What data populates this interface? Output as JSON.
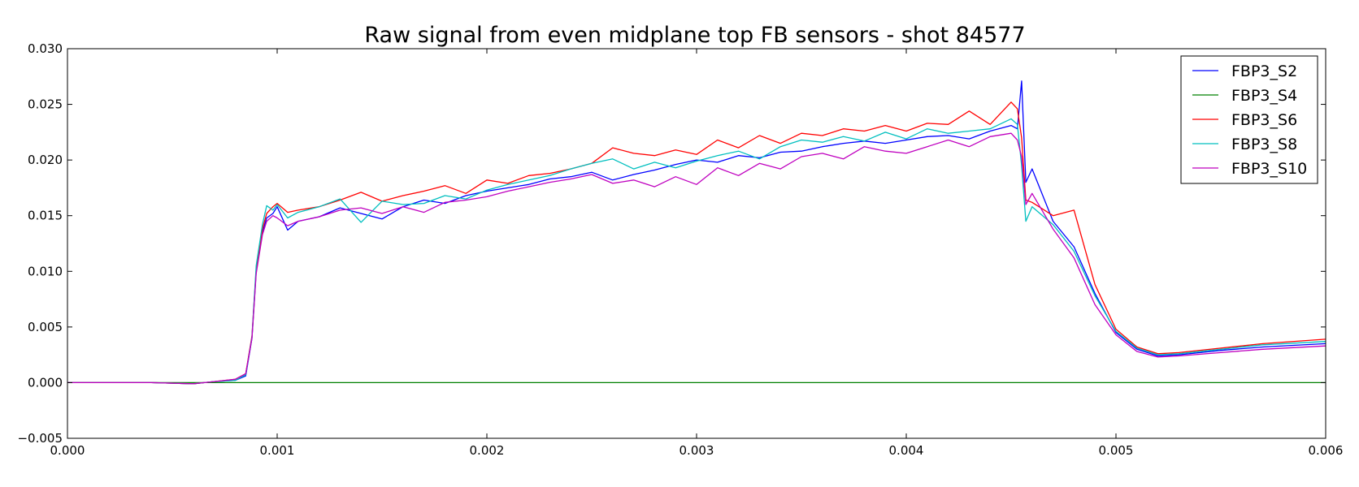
{
  "chart_data": {
    "type": "line",
    "title": "Raw signal from even midplane top FB sensors - shot 84577",
    "xlabel": "",
    "ylabel": "",
    "xlim": [
      0.0,
      0.006
    ],
    "ylim": [
      -0.005,
      0.03
    ],
    "xticks": [
      "0.000",
      "0.001",
      "0.002",
      "0.003",
      "0.004",
      "0.005",
      "0.006"
    ],
    "yticks": [
      "−0.005",
      "0.000",
      "0.005",
      "0.010",
      "0.015",
      "0.020",
      "0.025",
      "0.030"
    ],
    "grid": false,
    "legend_position": "top-right",
    "series": [
      {
        "name": "FBP3_S2",
        "color": "#0000ff",
        "points": [
          [
            0.0,
            0.0
          ],
          [
            0.0004,
            0.0
          ],
          [
            0.0006,
            -0.0001
          ],
          [
            0.0007,
            0.0001
          ],
          [
            0.0008,
            0.0002
          ],
          [
            0.00085,
            0.0006
          ],
          [
            0.00088,
            0.004
          ],
          [
            0.0009,
            0.01
          ],
          [
            0.00093,
            0.0135
          ],
          [
            0.00095,
            0.0148
          ],
          [
            0.00098,
            0.0152
          ],
          [
            0.001,
            0.0158
          ],
          [
            0.00105,
            0.0137
          ],
          [
            0.0011,
            0.0145
          ],
          [
            0.0012,
            0.0149
          ],
          [
            0.0013,
            0.0157
          ],
          [
            0.0014,
            0.0152
          ],
          [
            0.0015,
            0.0147
          ],
          [
            0.0016,
            0.0158
          ],
          [
            0.0017,
            0.0164
          ],
          [
            0.0018,
            0.0161
          ],
          [
            0.0019,
            0.0168
          ],
          [
            0.002,
            0.0172
          ],
          [
            0.0021,
            0.0175
          ],
          [
            0.0022,
            0.0178
          ],
          [
            0.0023,
            0.0183
          ],
          [
            0.0024,
            0.0185
          ],
          [
            0.0025,
            0.0189
          ],
          [
            0.0026,
            0.0182
          ],
          [
            0.0027,
            0.0187
          ],
          [
            0.0028,
            0.0191
          ],
          [
            0.0029,
            0.0196
          ],
          [
            0.003,
            0.02
          ],
          [
            0.0031,
            0.0198
          ],
          [
            0.0032,
            0.0204
          ],
          [
            0.0033,
            0.0202
          ],
          [
            0.0034,
            0.0207
          ],
          [
            0.0035,
            0.0208
          ],
          [
            0.0036,
            0.0212
          ],
          [
            0.0037,
            0.0215
          ],
          [
            0.0038,
            0.0217
          ],
          [
            0.0039,
            0.0215
          ],
          [
            0.004,
            0.0218
          ],
          [
            0.0041,
            0.0221
          ],
          [
            0.0042,
            0.0222
          ],
          [
            0.0043,
            0.0219
          ],
          [
            0.0044,
            0.0226
          ],
          [
            0.0045,
            0.0231
          ],
          [
            0.00453,
            0.0228
          ],
          [
            0.00455,
            0.0271
          ],
          [
            0.00457,
            0.018
          ],
          [
            0.0046,
            0.0192
          ],
          [
            0.0047,
            0.0145
          ],
          [
            0.0048,
            0.0122
          ],
          [
            0.0049,
            0.008
          ],
          [
            0.005,
            0.0045
          ],
          [
            0.0051,
            0.003
          ],
          [
            0.0052,
            0.0024
          ],
          [
            0.0053,
            0.0025
          ],
          [
            0.0055,
            0.0029
          ],
          [
            0.0057,
            0.0032
          ],
          [
            0.006,
            0.0035
          ]
        ]
      },
      {
        "name": "FBP3_S4",
        "color": "#008000",
        "points": [
          [
            0.0,
            0.0
          ],
          [
            0.001,
            0.0
          ],
          [
            0.002,
            0.0
          ],
          [
            0.003,
            0.0
          ],
          [
            0.004,
            0.0
          ],
          [
            0.005,
            0.0
          ],
          [
            0.006,
            0.0
          ]
        ]
      },
      {
        "name": "FBP3_S6",
        "color": "#ff0000",
        "points": [
          [
            0.0,
            0.0
          ],
          [
            0.0004,
            0.0
          ],
          [
            0.0006,
            -0.0001
          ],
          [
            0.0007,
            0.0001
          ],
          [
            0.0008,
            0.0003
          ],
          [
            0.00085,
            0.0008
          ],
          [
            0.00088,
            0.0042
          ],
          [
            0.0009,
            0.0102
          ],
          [
            0.00093,
            0.0138
          ],
          [
            0.00095,
            0.0152
          ],
          [
            0.00098,
            0.0158
          ],
          [
            0.001,
            0.0161
          ],
          [
            0.00105,
            0.0153
          ],
          [
            0.0011,
            0.0155
          ],
          [
            0.0012,
            0.0158
          ],
          [
            0.0013,
            0.0164
          ],
          [
            0.0014,
            0.0171
          ],
          [
            0.0015,
            0.0163
          ],
          [
            0.0016,
            0.0168
          ],
          [
            0.0017,
            0.0172
          ],
          [
            0.0018,
            0.0177
          ],
          [
            0.0019,
            0.017
          ],
          [
            0.002,
            0.0182
          ],
          [
            0.0021,
            0.0179
          ],
          [
            0.0022,
            0.0186
          ],
          [
            0.0023,
            0.0188
          ],
          [
            0.0024,
            0.0192
          ],
          [
            0.0025,
            0.0197
          ],
          [
            0.0026,
            0.0211
          ],
          [
            0.0027,
            0.0206
          ],
          [
            0.0028,
            0.0204
          ],
          [
            0.0029,
            0.0209
          ],
          [
            0.003,
            0.0205
          ],
          [
            0.0031,
            0.0218
          ],
          [
            0.0032,
            0.0211
          ],
          [
            0.0033,
            0.0222
          ],
          [
            0.0034,
            0.0215
          ],
          [
            0.0035,
            0.0224
          ],
          [
            0.0036,
            0.0222
          ],
          [
            0.0037,
            0.0228
          ],
          [
            0.0038,
            0.0226
          ],
          [
            0.0039,
            0.0231
          ],
          [
            0.004,
            0.0226
          ],
          [
            0.0041,
            0.0233
          ],
          [
            0.0042,
            0.0232
          ],
          [
            0.0043,
            0.0244
          ],
          [
            0.0044,
            0.0232
          ],
          [
            0.0045,
            0.0252
          ],
          [
            0.00453,
            0.0246
          ],
          [
            0.00455,
            0.022
          ],
          [
            0.00457,
            0.0164
          ],
          [
            0.0046,
            0.0162
          ],
          [
            0.0047,
            0.015
          ],
          [
            0.0048,
            0.0155
          ],
          [
            0.0049,
            0.0088
          ],
          [
            0.005,
            0.0048
          ],
          [
            0.0051,
            0.0032
          ],
          [
            0.0052,
            0.0026
          ],
          [
            0.0053,
            0.0027
          ],
          [
            0.0055,
            0.0031
          ],
          [
            0.0057,
            0.0035
          ],
          [
            0.006,
            0.0039
          ]
        ]
      },
      {
        "name": "FBP3_S8",
        "color": "#00bfbf",
        "points": [
          [
            0.0,
            0.0
          ],
          [
            0.0004,
            0.0
          ],
          [
            0.0006,
            -0.0001
          ],
          [
            0.0007,
            0.0001
          ],
          [
            0.0008,
            0.0002
          ],
          [
            0.00085,
            0.0007
          ],
          [
            0.00088,
            0.0041
          ],
          [
            0.0009,
            0.0105
          ],
          [
            0.00093,
            0.0142
          ],
          [
            0.00095,
            0.0159
          ],
          [
            0.00098,
            0.0155
          ],
          [
            0.001,
            0.016
          ],
          [
            0.00105,
            0.0148
          ],
          [
            0.0011,
            0.0153
          ],
          [
            0.0012,
            0.0158
          ],
          [
            0.0013,
            0.0165
          ],
          [
            0.0014,
            0.0144
          ],
          [
            0.0015,
            0.0163
          ],
          [
            0.0016,
            0.016
          ],
          [
            0.0017,
            0.0161
          ],
          [
            0.0018,
            0.0168
          ],
          [
            0.0019,
            0.0165
          ],
          [
            0.002,
            0.0173
          ],
          [
            0.0021,
            0.0178
          ],
          [
            0.0022,
            0.0182
          ],
          [
            0.0023,
            0.0186
          ],
          [
            0.0024,
            0.0192
          ],
          [
            0.0025,
            0.0197
          ],
          [
            0.0026,
            0.0201
          ],
          [
            0.0027,
            0.0192
          ],
          [
            0.0028,
            0.0198
          ],
          [
            0.0029,
            0.0193
          ],
          [
            0.003,
            0.0199
          ],
          [
            0.0031,
            0.0204
          ],
          [
            0.0032,
            0.0208
          ],
          [
            0.0033,
            0.0201
          ],
          [
            0.0034,
            0.0212
          ],
          [
            0.0035,
            0.0218
          ],
          [
            0.0036,
            0.0216
          ],
          [
            0.0037,
            0.0221
          ],
          [
            0.0038,
            0.0217
          ],
          [
            0.0039,
            0.0225
          ],
          [
            0.004,
            0.0219
          ],
          [
            0.0041,
            0.0228
          ],
          [
            0.0042,
            0.0224
          ],
          [
            0.0043,
            0.0226
          ],
          [
            0.0044,
            0.0228
          ],
          [
            0.0045,
            0.0237
          ],
          [
            0.00453,
            0.0232
          ],
          [
            0.00455,
            0.0195
          ],
          [
            0.00457,
            0.0145
          ],
          [
            0.0046,
            0.0158
          ],
          [
            0.0047,
            0.0142
          ],
          [
            0.0048,
            0.0118
          ],
          [
            0.0049,
            0.0078
          ],
          [
            0.005,
            0.0046
          ],
          [
            0.0051,
            0.0031
          ],
          [
            0.0052,
            0.0025
          ],
          [
            0.0053,
            0.0026
          ],
          [
            0.0055,
            0.003
          ],
          [
            0.0057,
            0.0034
          ],
          [
            0.006,
            0.0037
          ]
        ]
      },
      {
        "name": "FBP3_S10",
        "color": "#bf00bf",
        "points": [
          [
            0.0,
            0.0
          ],
          [
            0.0004,
            0.0
          ],
          [
            0.0006,
            -0.0001
          ],
          [
            0.0007,
            0.0001
          ],
          [
            0.0008,
            0.0003
          ],
          [
            0.00085,
            0.0008
          ],
          [
            0.00088,
            0.004
          ],
          [
            0.0009,
            0.0098
          ],
          [
            0.00093,
            0.0133
          ],
          [
            0.00095,
            0.0145
          ],
          [
            0.00098,
            0.015
          ],
          [
            0.001,
            0.0148
          ],
          [
            0.00105,
            0.0141
          ],
          [
            0.0011,
            0.0145
          ],
          [
            0.0012,
            0.0149
          ],
          [
            0.0013,
            0.0155
          ],
          [
            0.0014,
            0.0157
          ],
          [
            0.0015,
            0.0152
          ],
          [
            0.0016,
            0.0158
          ],
          [
            0.0017,
            0.0153
          ],
          [
            0.0018,
            0.0162
          ],
          [
            0.0019,
            0.0164
          ],
          [
            0.002,
            0.0167
          ],
          [
            0.0021,
            0.0172
          ],
          [
            0.0022,
            0.0176
          ],
          [
            0.0023,
            0.018
          ],
          [
            0.0024,
            0.0183
          ],
          [
            0.0025,
            0.0187
          ],
          [
            0.0026,
            0.0179
          ],
          [
            0.0027,
            0.0182
          ],
          [
            0.0028,
            0.0176
          ],
          [
            0.0029,
            0.0185
          ],
          [
            0.003,
            0.0178
          ],
          [
            0.0031,
            0.0193
          ],
          [
            0.0032,
            0.0186
          ],
          [
            0.0033,
            0.0197
          ],
          [
            0.0034,
            0.0192
          ],
          [
            0.0035,
            0.0203
          ],
          [
            0.0036,
            0.0206
          ],
          [
            0.0037,
            0.0201
          ],
          [
            0.0038,
            0.0212
          ],
          [
            0.0039,
            0.0208
          ],
          [
            0.004,
            0.0206
          ],
          [
            0.0041,
            0.0212
          ],
          [
            0.0042,
            0.0218
          ],
          [
            0.0043,
            0.0212
          ],
          [
            0.0044,
            0.0221
          ],
          [
            0.0045,
            0.0224
          ],
          [
            0.00453,
            0.0218
          ],
          [
            0.00455,
            0.0203
          ],
          [
            0.00457,
            0.016
          ],
          [
            0.0046,
            0.017
          ],
          [
            0.0047,
            0.0138
          ],
          [
            0.0048,
            0.0112
          ],
          [
            0.0049,
            0.007
          ],
          [
            0.005,
            0.0043
          ],
          [
            0.0051,
            0.0028
          ],
          [
            0.0052,
            0.0023
          ],
          [
            0.0053,
            0.0024
          ],
          [
            0.0055,
            0.0027
          ],
          [
            0.0057,
            0.003
          ],
          [
            0.006,
            0.0033
          ]
        ]
      }
    ]
  }
}
